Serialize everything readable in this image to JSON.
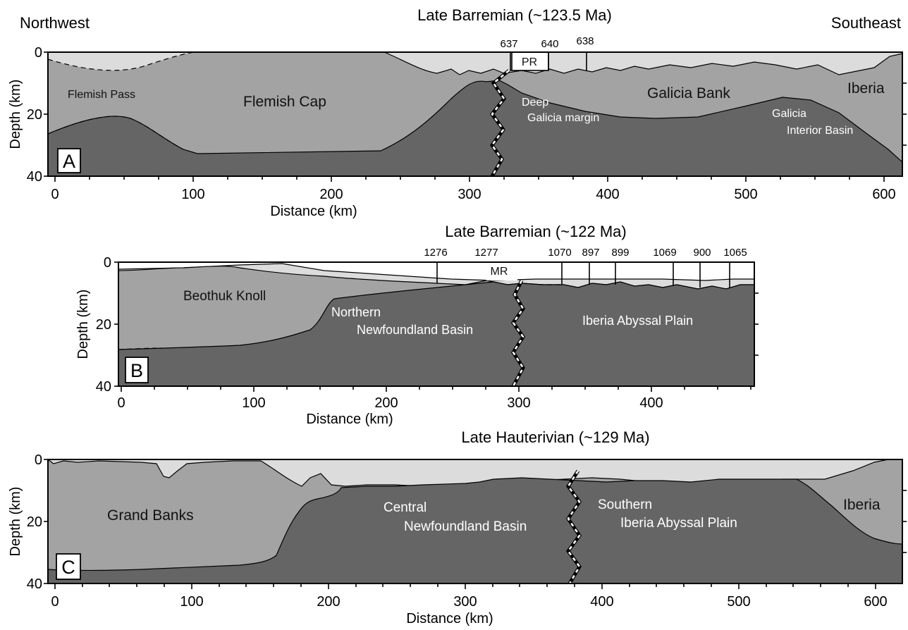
{
  "directions": {
    "left": "Northwest",
    "right": "Southeast"
  },
  "colors": {
    "water": "#ffffff",
    "sediment": "#dcdcdc",
    "crust": "#a3a3a3",
    "mantle": "#656565"
  },
  "panels": {
    "a": {
      "letter": "A",
      "title": "Late Barremian (~123.5 Ma)",
      "xlabel": "Distance (km)",
      "ylabel": "Depth (km)",
      "xticks": [
        "0",
        "100",
        "200",
        "300",
        "400",
        "500",
        "600"
      ],
      "yticks": [
        "0",
        "20",
        "40"
      ],
      "sites": [
        "637",
        "640",
        "638"
      ],
      "ridge_label": "PR",
      "labels": {
        "flemish_pass": "Flemish Pass",
        "flemish_cap": "Flemish Cap",
        "deep_galicia_1": "Deep",
        "deep_galicia_2": "Galicia margin",
        "galicia_bank": "Galicia Bank",
        "iberia": "Iberia",
        "gib_1": "Galicia",
        "gib_2": "Interior Basin"
      }
    },
    "b": {
      "letter": "B",
      "title": "Late Barremian (~122 Ma)",
      "xlabel": "Distance (km)",
      "ylabel": "Depth (km)",
      "xticks": [
        "0",
        "100",
        "200",
        "300",
        "400"
      ],
      "yticks": [
        "0",
        "20",
        "40"
      ],
      "sites": [
        "1276",
        "1277",
        "1070",
        "897",
        "899",
        "1069",
        "900",
        "1065"
      ],
      "ridge_label": "MR",
      "labels": {
        "beothuk": "Beothuk Knoll",
        "nnb_1": "Northern",
        "nnb_2": "Newfoundland Basin",
        "iap": "Iberia Abyssal Plain"
      }
    },
    "c": {
      "letter": "C",
      "title": "Late Hauterivian (~129 Ma)",
      "xlabel": "Distance (km)",
      "ylabel": "Depth (km)",
      "xticks": [
        "0",
        "100",
        "200",
        "300",
        "400",
        "500",
        "600"
      ],
      "yticks": [
        "0",
        "20",
        "40"
      ],
      "labels": {
        "grand_banks": "Grand Banks",
        "cnb_1": "Central",
        "cnb_2": "Newfoundland Basin",
        "siap_1": "Southern",
        "siap_2": "Iberia Abyssal Plain",
        "iberia": "Iberia"
      }
    }
  }
}
